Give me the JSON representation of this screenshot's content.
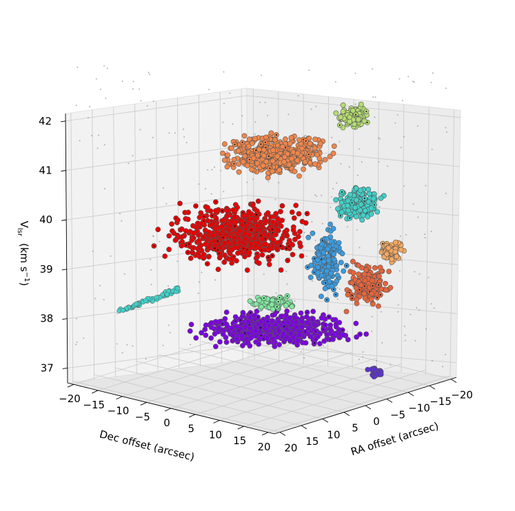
{
  "chart_data": {
    "type": "scatter3d",
    "title": "",
    "view": "3D perspective, box axes with grid",
    "axes": {
      "x": {
        "label": "RA offset (arcsec)",
        "ticks": [
          "20",
          "15",
          "10",
          "5",
          "0",
          "−5",
          "−10",
          "−15",
          "−20"
        ],
        "range": [
          -20,
          20
        ]
      },
      "y": {
        "label": "Dec offset (arcsec)",
        "ticks": [
          "−20",
          "−15",
          "−10",
          "−5",
          "0",
          "5",
          "10",
          "15",
          "20"
        ],
        "range": [
          -20,
          20
        ]
      },
      "z": {
        "label": "V",
        "label_subscript": "lsr",
        "label_unit": "(km s",
        "label_exponent": "−1",
        "label_close": ")",
        "ticks": [
          "37",
          "38",
          "39",
          "40",
          "41",
          "42"
        ],
        "range": [
          37,
          42
        ]
      }
    },
    "grid": true,
    "legend": "none",
    "series": [
      {
        "color": "#7b00e0",
        "v_center": 37.9,
        "note_extent": "large cluster at low velocity"
      },
      {
        "color": "#e60000",
        "v_center": 39.8
      },
      {
        "color": "#f0864a",
        "v_center": 41.1
      },
      {
        "color": "#b5dc70",
        "v_center": 41.7
      },
      {
        "color": "#3a9be0",
        "v_center": 39.3
      },
      {
        "color": "#40d0c8",
        "v_center": 40.1
      },
      {
        "color": "#e8643a",
        "v_center": 38.9
      },
      {
        "color": "#f4a860",
        "v_center": 39.5
      },
      {
        "color": "#80e8a0",
        "v_center": 38.4
      },
      {
        "color": "#5a30d0",
        "v_center": 37.2
      }
    ],
    "background_points_color": "#909090"
  }
}
